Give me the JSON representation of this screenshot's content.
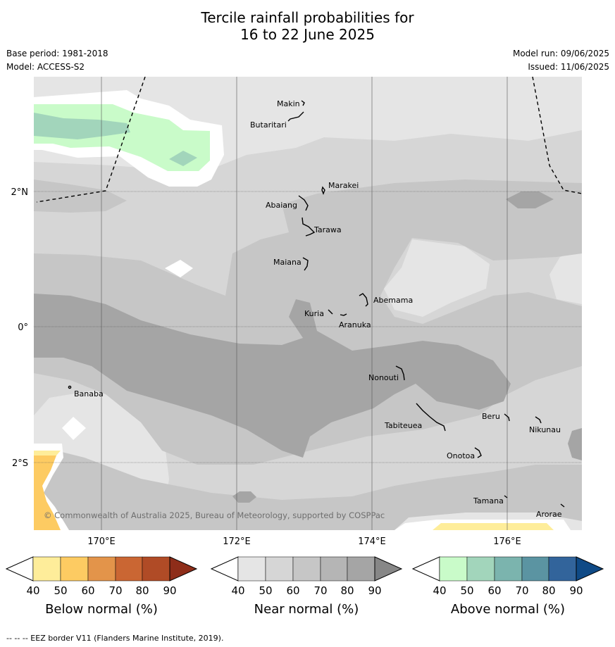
{
  "title": {
    "line1": "Tercile rainfall probabilities for",
    "line2": "16 to 22 June 2025"
  },
  "meta": {
    "base_period": "Base period: 1981-2018",
    "model": "Model: ACCESS-S2",
    "model_run": "Model run: 09/06/2025",
    "issued": "Issued: 11/06/2025"
  },
  "map": {
    "lon_labels": [
      "170°E",
      "172°E",
      "174°E",
      "176°E"
    ],
    "lat_labels": [
      "2°N",
      "0°",
      "2°S"
    ],
    "islands": [
      "Makin",
      "Butaritari",
      "Marakei",
      "Abaiang",
      "Tarawa",
      "Maiana",
      "Abemama",
      "Kuria",
      "Aranuka",
      "Banaba",
      "Nonouti",
      "Beru",
      "Tabiteuea",
      "Nikunau",
      "Onotoa",
      "Tamana",
      "Arorae"
    ],
    "copyright": "© Commonwealth of Australia 2025, Bureau of Meteorology, supported by COSPPac",
    "colors": {
      "ocean_base": "#d6d6d6",
      "near_40": "#e5e5e5",
      "near_60": "#c6c6c6",
      "near_80": "#a5a5a5",
      "above_40": "#c9fbc9",
      "above_50": "#a2d5bb",
      "below_40": "#feed9a",
      "below_50": "#fdcb62"
    }
  },
  "colorbars": [
    {
      "label": "Below normal (%)",
      "ticks": [
        "40",
        "50",
        "60",
        "70",
        "80",
        "90"
      ],
      "colors": [
        "#feed9a",
        "#fdcb62",
        "#e3944a",
        "#ca6633",
        "#b04b26",
        "#8e2d19"
      ]
    },
    {
      "label": "Near normal (%)",
      "ticks": [
        "40",
        "50",
        "60",
        "70",
        "80",
        "90"
      ],
      "colors": [
        "#e5e5e5",
        "#d6d6d6",
        "#c6c6c6",
        "#b5b5b5",
        "#a5a5a5",
        "#878787"
      ]
    },
    {
      "label": "Above normal (%)",
      "ticks": [
        "40",
        "50",
        "60",
        "70",
        "80",
        "90"
      ],
      "colors": [
        "#c9fbc9",
        "#a2d5bb",
        "#7bb4ae",
        "#5b94a2",
        "#32649b",
        "#0f4a86"
      ]
    }
  ],
  "footer": "--  --  -- EEZ border V11 (Flanders Marine Institute, 2019)."
}
